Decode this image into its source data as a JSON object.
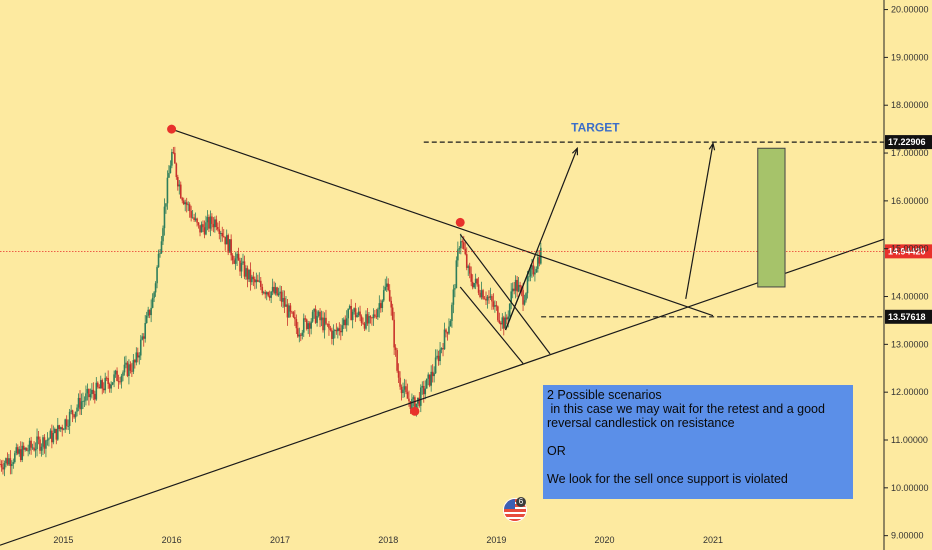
{
  "chart_data": {
    "type": "candlestick",
    "x_range": [
      "2014-06-01",
      "2022-08-01"
    ],
    "y_range": [
      8.7,
      20.2
    ],
    "x_ticks": [
      "2015",
      "2016",
      "2017",
      "2018",
      "2019",
      "2020",
      "2021"
    ],
    "y_ticks": [
      "9.00000",
      "10.00000",
      "11.00000",
      "12.00000",
      "13.00000",
      "14.00000",
      "15.00000",
      "16.00000",
      "17.00000",
      "18.00000",
      "19.00000",
      "20.00000"
    ],
    "price_series": [
      [
        "2014-06-01",
        10.5
      ],
      [
        "2014-09-01",
        10.8
      ],
      [
        "2014-12-01",
        11.1
      ],
      [
        "2015-03-01",
        11.8
      ],
      [
        "2015-06-01",
        12.2
      ],
      [
        "2015-09-01",
        12.6
      ],
      [
        "2015-11-01",
        14.0
      ],
      [
        "2016-01-01",
        17.0
      ],
      [
        "2016-02-01",
        16.2
      ],
      [
        "2016-04-01",
        15.4
      ],
      [
        "2016-06-01",
        15.6
      ],
      [
        "2016-08-01",
        14.8
      ],
      [
        "2016-10-01",
        14.3
      ],
      [
        "2017-01-01",
        14.0
      ],
      [
        "2017-03-01",
        13.3
      ],
      [
        "2017-05-01",
        13.6
      ],
      [
        "2017-07-01",
        13.2
      ],
      [
        "2017-09-01",
        13.7
      ],
      [
        "2017-11-01",
        13.4
      ],
      [
        "2018-01-01",
        14.3
      ],
      [
        "2018-02-01",
        12.4
      ],
      [
        "2018-03-01",
        11.9
      ],
      [
        "2018-04-01",
        11.7
      ],
      [
        "2018-06-01",
        12.4
      ],
      [
        "2018-08-01",
        13.6
      ],
      [
        "2018-09-01",
        15.3
      ],
      [
        "2018-10-01",
        14.4
      ],
      [
        "2018-12-01",
        14.0
      ],
      [
        "2019-02-01",
        13.4
      ],
      [
        "2019-03-01",
        14.3
      ],
      [
        "2019-04-01",
        14.0
      ],
      [
        "2019-05-01",
        14.5
      ],
      [
        "2019-06-01",
        14.94
      ]
    ],
    "trendlines": [
      {
        "from": [
          "2016-01-01",
          17.5
        ],
        "to": [
          "2021-01-01",
          13.6
        ]
      },
      {
        "from": [
          "2014-06-01",
          8.8
        ],
        "to": [
          "2022-08-01",
          15.2
        ]
      },
      {
        "from": [
          "2018-09-01",
          15.3
        ],
        "to": [
          "2019-07-01",
          12.8
        ]
      },
      {
        "from": [
          "2018-09-01",
          14.2
        ],
        "to": [
          "2019-04-01",
          12.6
        ]
      },
      {
        "from": [
          "2019-02-01",
          13.3
        ],
        "to": [
          "2019-10-01",
          17.1
        ]
      },
      {
        "from": [
          "2019-02-01",
          13.3
        ],
        "to": [
          "2019-05-01",
          14.7
        ]
      },
      {
        "from": [
          "2020-10-01",
          13.95
        ],
        "to": [
          "2021-01-01",
          17.2
        ]
      }
    ],
    "pivot_points": [
      [
        "2016-01-01",
        17.5
      ],
      [
        "2018-09-01",
        15.55
      ],
      [
        "2018-04-01",
        11.6
      ]
    ],
    "horizontal_levels": [
      {
        "value": 17.22906,
        "label": "17.22906",
        "style": "dashed",
        "start": "2018-05-01"
      },
      {
        "value": 13.57618,
        "label": "13.57618",
        "style": "dashed",
        "start": "2019-06-01"
      },
      {
        "value": 14.9442,
        "label": "14.94420",
        "style": "dotted-red",
        "start": "2014-06-01"
      }
    ],
    "target_box": {
      "x0": "2021-06-01",
      "x1": "2021-09-01",
      "y0": 14.2,
      "y1": 17.1
    },
    "annotation_title": "TARGET",
    "annotation_title_anchor": [
      "2019-12-01",
      17.45
    ],
    "colors": {
      "background": "#fdeaa0",
      "candle_up": "#2e7d5b",
      "candle_down": "#c8312b",
      "trendline": "#1a1a1a",
      "pivot": "#e8312b",
      "current_price": "#e8312b",
      "target_box": "#a6c36a",
      "note_box": "#5b8fe8",
      "axis_text": "#333333"
    }
  },
  "note": {
    "line1": "2 Possible scenarios",
    "line2": " in this case we may wait for the retest and a good",
    "line3": "reversal candlestick on resistance",
    "line4": "OR",
    "line5": "We look for the sell once support is violated"
  },
  "badge": {
    "count": "6",
    "icon": "us-flag-icon"
  }
}
